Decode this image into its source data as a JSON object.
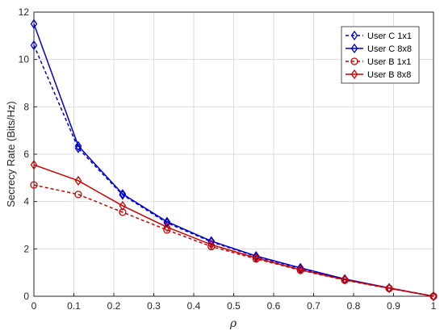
{
  "chart_data": {
    "type": "line",
    "xlabel": "ρ",
    "ylabel": "Secrecy Rate (Bits/Hz)",
    "xlim": [
      0,
      1
    ],
    "ylim": [
      0,
      12
    ],
    "xticks": [
      "0",
      "0.1",
      "0.2",
      "0.3",
      "0.4",
      "0.5",
      "0.6",
      "0.7",
      "0.8",
      "0.9",
      "1"
    ],
    "yticks": [
      "0",
      "2",
      "4",
      "6",
      "8",
      "10",
      "12"
    ],
    "grid": true,
    "legend_position": "top-right",
    "series": [
      {
        "name": "User C 1x1",
        "color": "#0000cc",
        "line_style": "dashed",
        "marker": "diamond",
        "x": [
          0,
          0.111,
          0.222,
          0.333,
          0.444,
          0.556,
          0.667,
          0.778,
          0.889,
          1.0
        ],
        "y": [
          10.6,
          6.25,
          4.28,
          3.1,
          2.3,
          1.68,
          1.18,
          0.72,
          0.35,
          0.0
        ]
      },
      {
        "name": "User C 8x8",
        "color": "#0000cc",
        "line_style": "solid",
        "marker": "diamond",
        "x": [
          0,
          0.111,
          0.222,
          0.333,
          0.444,
          0.556,
          0.667,
          0.778,
          0.889,
          1.0
        ],
        "y": [
          11.5,
          6.35,
          4.32,
          3.15,
          2.33,
          1.7,
          1.2,
          0.73,
          0.35,
          0.0
        ]
      },
      {
        "name": "User B 1x1",
        "color": "#cc0000",
        "line_style": "dashed",
        "marker": "circle",
        "x": [
          0,
          0.111,
          0.222,
          0.333,
          0.444,
          0.556,
          0.667,
          0.778,
          0.889,
          1.0
        ],
        "y": [
          4.7,
          4.3,
          3.55,
          2.8,
          2.1,
          1.58,
          1.1,
          0.68,
          0.33,
          0.0
        ]
      },
      {
        "name": "User B 8x8",
        "color": "#cc0000",
        "line_style": "solid",
        "marker": "diamond",
        "x": [
          0,
          0.111,
          0.222,
          0.333,
          0.444,
          0.556,
          0.667,
          0.778,
          0.889,
          1.0
        ],
        "y": [
          5.55,
          4.88,
          3.82,
          2.92,
          2.18,
          1.62,
          1.12,
          0.7,
          0.34,
          0.0
        ]
      }
    ]
  }
}
